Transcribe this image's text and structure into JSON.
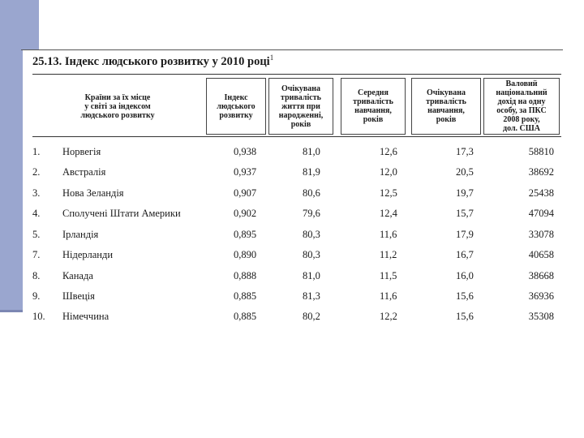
{
  "title": {
    "text": "25.13. Індекс людського розвитку  у 2010 році",
    "footnote": "1"
  },
  "headers": [
    "Країни за їх місце\nу світі за індексом\nлюдського розвитку",
    "Індекс\nлюдського\nрозвитку",
    "Очікувана\nтривалість\nжиття при\nнародженні,\nроків",
    "Середня\nтривалість\nнавчання,\nроків",
    "Очікувана\nтривалість\nнавчання,\nроків",
    "Валовий\nнаціональний\nдохід на одну\nособу, за ПКС\n2008 року,\nдол. США"
  ],
  "rows": [
    {
      "rank": "1.",
      "country": " Норвегія",
      "hdi": "0,938",
      "life": "81,0",
      "mean_school": "12,6",
      "exp_school": "17,3",
      "gni": "58810"
    },
    {
      "rank": "2.",
      "country": "Австралія",
      "hdi": "0,937",
      "life": "81,9",
      "mean_school": "12,0",
      "exp_school": "20,5",
      "gni": "38692"
    },
    {
      "rank": "3.",
      "country": "Нова Зеландія",
      "hdi": "0,907",
      "life": "80,6",
      "mean_school": "12,5",
      "exp_school": "19,7",
      "gni": "25438"
    },
    {
      "rank": "4.",
      "country": "Сполучені Штати Америки",
      "hdi": "0,902",
      "life": "79,6",
      "mean_school": "12,4",
      "exp_school": "15,7",
      "gni": "47094"
    },
    {
      "rank": "5.",
      "country": "Ірландія",
      "hdi": "0,895",
      "life": "80,3",
      "mean_school": "11,6",
      "exp_school": "17,9",
      "gni": "33078"
    },
    {
      "rank": "7.",
      "country": "Нідерланди",
      "hdi": "0,890",
      "life": "80,3",
      "mean_school": "11,2",
      "exp_school": "16,7",
      "gni": "40658"
    },
    {
      "rank": "8.",
      "country": "Канада",
      "hdi": "0,888",
      "life": "81,0",
      "mean_school": "11,5",
      "exp_school": "16,0",
      "gni": "38668"
    },
    {
      "rank": "9.",
      "country": "Швеція",
      "hdi": "0,885",
      "life": "81,3",
      "mean_school": "11,6",
      "exp_school": "15,6",
      "gni": "36936"
    },
    {
      "rank": "10.",
      "country": "Німеччина",
      "hdi": "0,885",
      "life": "80,2",
      "mean_school": "12,2",
      "exp_school": "15,6",
      "gni": "35308"
    }
  ]
}
